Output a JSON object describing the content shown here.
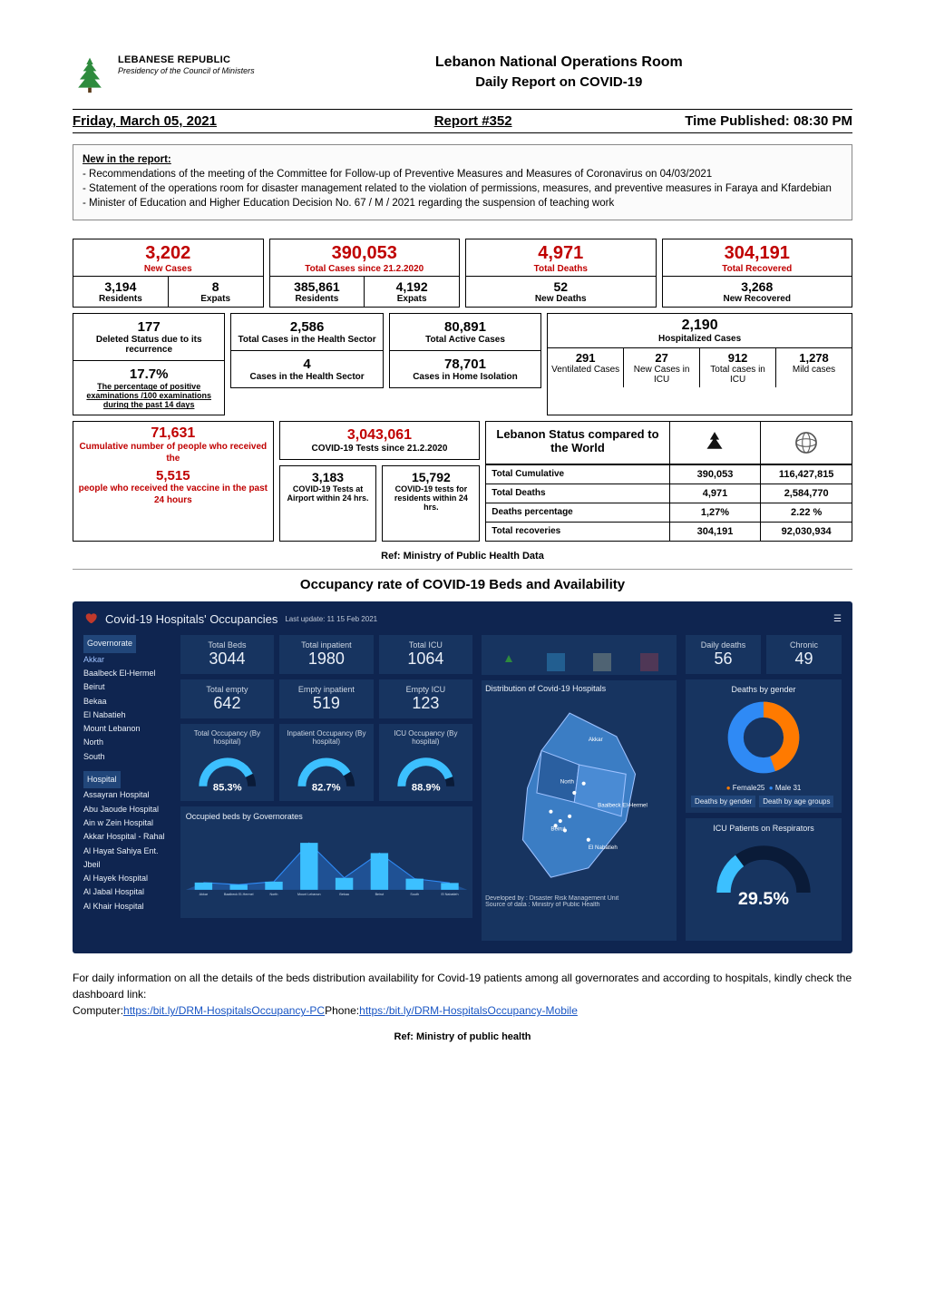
{
  "header": {
    "republic": "LEBANESE REPUBLIC",
    "presidency": "Presidency of the Council of Ministers",
    "title1": "Lebanon National Operations Room",
    "title2": "Daily Report on COVID-19"
  },
  "meta": {
    "date": "Friday, March 05, 2021",
    "report": "Report #352",
    "time": "Time Published: 08:30 PM"
  },
  "newbox": {
    "heading": "New in the report:",
    "lines": [
      "- Recommendations of the meeting of the Committee for Follow-up of Preventive Measures and Measures of Coronavirus on 04/03/2021",
      "- Statement of the operations room for disaster management related to the violation of permissions, measures, and preventive measures in Faraya and Kfardebian",
      "- Minister of Education and Higher Education Decision No. 67 / M / 2021 regarding the suspension of teaching work"
    ]
  },
  "stats": {
    "newCases": {
      "value": "3,202",
      "label": "New Cases",
      "residents": "3,194",
      "expats": "8",
      "residentsLbl": "Residents",
      "expatsLbl": "Expats"
    },
    "totalCases": {
      "value": "390,053",
      "label": "Total Cases since 21.2.2020",
      "residents": "385,861",
      "expats": "4,192",
      "residentsLbl": "Residents",
      "expatsLbl": "Expats"
    },
    "totalDeaths": {
      "value": "4,971",
      "label": "Total Deaths",
      "newDeaths": "52",
      "newDeathsLbl": "New Deaths"
    },
    "recovered": {
      "value": "304,191",
      "label": "Total Recovered",
      "newRecovered": "3,268",
      "newRecoveredLbl": "New Recovered"
    }
  },
  "row2": {
    "deleted": {
      "value": "177",
      "label": "Deleted Status due to its recurrence"
    },
    "positivity": {
      "value": "17.7%",
      "label": "The percentage of positive examinations /100 examinations during the past 14 days"
    },
    "healthSector": {
      "value": "2,586",
      "label": "Total Cases in the Health Sector",
      "sub": "4",
      "subLbl": "Cases in the Health Sector"
    },
    "active": {
      "value": "80,891",
      "label": "Total Active Cases",
      "sub": "78,701",
      "subLbl": "Cases in Home Isolation"
    },
    "hospitalized": {
      "value": "2,190",
      "label": "Hospitalized Cases",
      "cols": [
        {
          "v": "291",
          "l": "Ventilated Cases"
        },
        {
          "v": "27",
          "l": "New Cases in ICU"
        },
        {
          "v": "912",
          "l": "Total cases in ICU"
        },
        {
          "v": "1,278",
          "l": "Mild cases"
        }
      ]
    }
  },
  "row3": {
    "vax": {
      "v1": "71,631",
      "l1": "Cumulative number of people who received the",
      "v2": "5,515",
      "l2": "people who received the vaccine in the past 24 hours"
    },
    "tests": {
      "total": "3,043,061",
      "totalLbl": "COVID-19 Tests since 21.2.2020",
      "airport": {
        "v": "3,183",
        "l": "COVID-19 Tests at Airport within 24 hrs."
      },
      "residents": {
        "v": "15,792",
        "l": "COVID-19 tests for residents within 24 hrs."
      }
    },
    "world": {
      "title": "Lebanon Status compared to the World",
      "rows": [
        {
          "label": "Total Cumulative",
          "leb": "390,053",
          "world": "116,427,815"
        },
        {
          "label": "Total Deaths",
          "leb": "4,971",
          "world": "2,584,770"
        },
        {
          "label": "Deaths percentage",
          "leb": "1,27%",
          "world": "2.22 %"
        },
        {
          "label": "Total recoveries",
          "leb": "304,191",
          "world": "92,030,934"
        }
      ]
    }
  },
  "ref1": "Ref: Ministry of Public Health Data",
  "occTitle": "Occupancy rate of COVID-19 Beds and Availability",
  "dash": {
    "title": "Covid-19 Hospitals' Occupancies",
    "lastUpdateLabel": "Last update:",
    "lastUpdateVal": "11  15 Feb 2021",
    "governorateHdr": "Governorate",
    "governorates": [
      "Akkar",
      "Baalbeck El-Hermel",
      "Beirut",
      "Bekaa",
      "El Nabatieh",
      "Mount Lebanon",
      "North",
      "South"
    ],
    "hospitalHdr": "Hospital",
    "hospitals": [
      "Assayran Hospital",
      "Abu Jaoude Hospital",
      "Ain w Zein Hospital",
      "Akkar Hospital - Rahal",
      "Al Hayat Sahiya Ent. Jbeil",
      "Al Hayek Hospital",
      "Al Jabal Hospital",
      "Al Khair Hospital"
    ],
    "kpis": [
      {
        "l": "Total Beds",
        "v": "3044"
      },
      {
        "l": "Total inpatient",
        "v": "1980"
      },
      {
        "l": "Total ICU",
        "v": "1064"
      },
      {
        "l": "Total empty",
        "v": "642"
      },
      {
        "l": "Empty inpatient",
        "v": "519"
      },
      {
        "l": "Empty ICU",
        "v": "123"
      }
    ],
    "gauges": [
      {
        "l": "Total Occupancy (By hospital)",
        "v": "85.3%",
        "pct": 85.3
      },
      {
        "l": "Inpatient Occupancy (By hospital)",
        "v": "82.7%",
        "pct": 82.7
      },
      {
        "l": "ICU Occupancy (By hospital)",
        "v": "88.9%",
        "pct": 88.9
      }
    ],
    "barTitle": "Occupied beds by Governorates",
    "barCategories": [
      "Akkar",
      "Baalbeck El-Hermel",
      "North",
      "Mount Lebanon",
      "Bekaa",
      "Beirut",
      "South",
      "El Nabatieh"
    ],
    "barValues": [
      85,
      60,
      95,
      550,
      140,
      430,
      130,
      80
    ],
    "barColor": "#3cc0ff",
    "mapTitle": "Distribution of Covid-19 Hospitals",
    "mapCredit1": "Developed by :  Disaster Risk Management Unit",
    "mapCredit2": "Source of data :  Ministry of Public Health",
    "rightKpis": [
      {
        "l": "Daily deaths",
        "v": "56"
      },
      {
        "l": "Chronic",
        "v": "49"
      }
    ],
    "donutTitle": "Deaths by gender",
    "donutLegend": {
      "female": "Female25",
      "male": "Male  31"
    },
    "donutFemalePct": 44.6,
    "donutColors": {
      "female": "#ff7a00",
      "male": "#2f8af5"
    },
    "tabs": [
      "Deaths by gender",
      "Death by age groups"
    ],
    "respTitle": "ICU Patients on Respirators",
    "respPct": 29.5,
    "respLabel": "29.5%",
    "panelBg": "#173460",
    "dashBg": "#0f2550",
    "accent": "#3cc0ff"
  },
  "foot": {
    "text": "For daily information on all the details of the beds distribution availability for Covid-19 patients among all governorates and according to hospitals, kindly check the dashboard link:",
    "computerLbl": "Computer:",
    "link1": "https:/bit.ly/DRM-HospitalsOccupancy-PC",
    "phoneLbl": "Phone:",
    "link2": "https:/bit.ly/DRM-HospitalsOccupancy-Mobile"
  },
  "ref2": "Ref: Ministry of public health"
}
